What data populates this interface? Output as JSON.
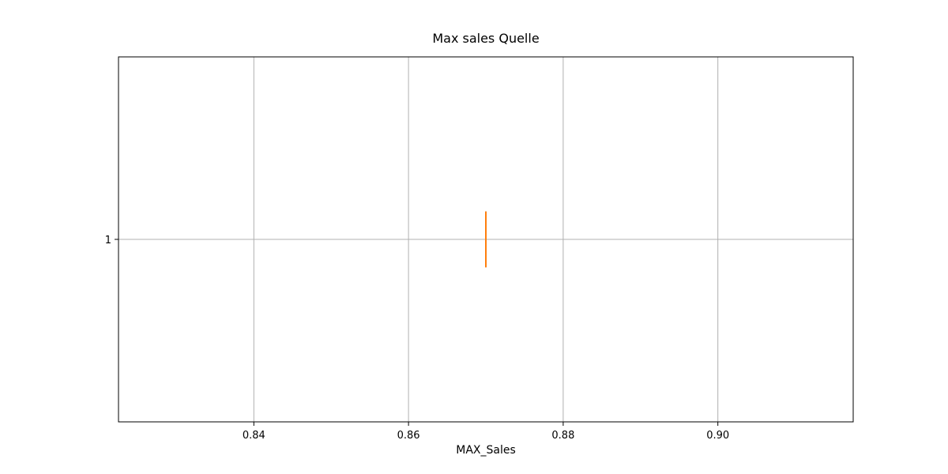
{
  "chart_data": {
    "type": "boxplot",
    "orientation": "horizontal",
    "title": "Max sales Quelle",
    "xlabel": "MAX_Sales",
    "ylabel": "",
    "xlim": [
      0.8225,
      0.9175
    ],
    "xticks": [
      0.84,
      0.86,
      0.88,
      0.9
    ],
    "xtick_labels": [
      "0.84",
      "0.86",
      "0.88",
      "0.90"
    ],
    "yticks": [
      1
    ],
    "ytick_labels": [
      "1"
    ],
    "grid": true,
    "series": [
      {
        "position": 1,
        "min": 0.87,
        "q1": 0.87,
        "median": 0.87,
        "q3": 0.87,
        "max": 0.87
      }
    ],
    "colors": {
      "box": "#1f77b4",
      "median": "#ff7f0e",
      "grid": "#b0b0b0",
      "axes": "#000000"
    }
  }
}
